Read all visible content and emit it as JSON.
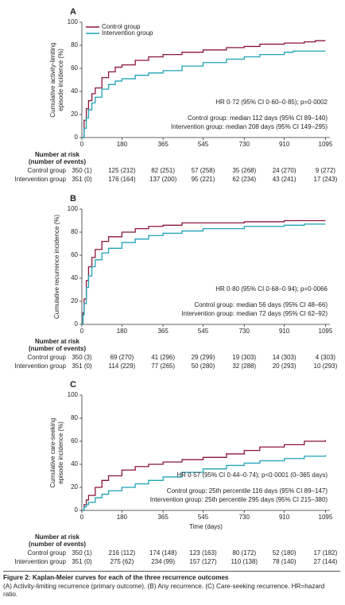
{
  "chart_data": [
    {
      "type": "step",
      "panel": "A",
      "ylabel": [
        "Cumulative activity-limiting",
        "episode incidence (%)"
      ],
      "xlim": [
        0,
        1115
      ],
      "ylim": [
        0,
        100
      ],
      "xticks": [
        0,
        180,
        365,
        545,
        730,
        910,
        1095
      ],
      "yticks": [
        0,
        20,
        40,
        60,
        80,
        100
      ],
      "legend": "upper left",
      "series": [
        {
          "name": "Control group",
          "color": "#8b1538",
          "x": [
            0,
            10,
            20,
            30,
            45,
            60,
            90,
            120,
            150,
            180,
            240,
            300,
            365,
            450,
            545,
            650,
            730,
            800,
            910,
            1000,
            1050,
            1095
          ],
          "values": [
            0,
            15,
            25,
            32,
            38,
            43,
            52,
            57,
            61,
            63,
            67,
            70,
            72,
            74,
            76,
            78,
            79,
            81,
            82,
            83,
            84,
            84
          ]
        },
        {
          "name": "Intervention group",
          "color": "#1fa3b8",
          "x": [
            0,
            10,
            20,
            30,
            45,
            60,
            90,
            120,
            150,
            180,
            240,
            300,
            365,
            450,
            545,
            650,
            730,
            800,
            910,
            950,
            1095
          ],
          "values": [
            0,
            8,
            17,
            24,
            30,
            35,
            42,
            46,
            49,
            51,
            54,
            56,
            58,
            62,
            65,
            68,
            70,
            72,
            74,
            75,
            75
          ]
        }
      ],
      "annotations": [
        "HR 0·72 (95% CI 0·60–0·85); p=0·0002",
        "Control group: median 112 days (95% CI 89–140)",
        "Intervention group: median 208 days (95% CI 149–295)"
      ],
      "risk_table": {
        "title": [
          "Number at risk",
          "(number of events)"
        ],
        "rows": [
          {
            "label": "Control group",
            "cells": [
              "350 (1)",
              "125 (212)",
              "82 (251)",
              "57 (258)",
              "35 (268)",
              "24 (270)",
              "9 (272)"
            ]
          },
          {
            "label": "Intervention group",
            "cells": [
              "351 (0)",
              "176 (164)",
              "137 (200)",
              "95 (221)",
              "62 (234)",
              "43 (241)",
              "17 (243)"
            ]
          }
        ]
      }
    },
    {
      "type": "step",
      "panel": "B",
      "ylabel": [
        "Cumulative recurrence incidence (%)"
      ],
      "xlim": [
        0,
        1115
      ],
      "ylim": [
        0,
        100
      ],
      "xticks": [
        0,
        180,
        365,
        545,
        730,
        910,
        1095
      ],
      "yticks": [
        0,
        20,
        40,
        60,
        80,
        100
      ],
      "series": [
        {
          "color": "#8b1538",
          "x": [
            0,
            5,
            10,
            20,
            30,
            45,
            60,
            90,
            120,
            180,
            240,
            300,
            365,
            450,
            545,
            730,
            910,
            1095
          ],
          "values": [
            0,
            10,
            22,
            38,
            50,
            58,
            65,
            72,
            76,
            80,
            83,
            85,
            86,
            88,
            88,
            89,
            90,
            90
          ]
        },
        {
          "color": "#1fa3b8",
          "x": [
            0,
            5,
            10,
            20,
            30,
            45,
            60,
            90,
            120,
            180,
            240,
            300,
            365,
            450,
            545,
            730,
            910,
            1000,
            1095
          ],
          "values": [
            0,
            8,
            18,
            32,
            42,
            50,
            56,
            62,
            66,
            71,
            74,
            77,
            79,
            81,
            83,
            85,
            86,
            87,
            87
          ]
        }
      ],
      "annotations": [
        "HR 0·80 (95% CI 0·68–0·94); p=0·0066",
        "Control group: median 56 days (95% CI 48–66)",
        "Intervention group: median 72 days (95% CI 62–92)"
      ],
      "risk_table": {
        "title": [
          "Number at risk",
          "(number of events)"
        ],
        "rows": [
          {
            "label": "Control group",
            "cells": [
              "350 (3)",
              "69 (270)",
              "41 (296)",
              "29 (299)",
              "19 (303)",
              "14 (303)",
              "4 (303)"
            ]
          },
          {
            "label": "Intervention group",
            "cells": [
              "351 (0)",
              "114 (229)",
              "77 (265)",
              "50 (280)",
              "32 (288)",
              "20 (293)",
              "10 (293)"
            ]
          }
        ]
      }
    },
    {
      "type": "step",
      "panel": "C",
      "ylabel": [
        "Cumulative care-seeking",
        "episode incidence (%)"
      ],
      "xlabel": "Time (days)",
      "xlim": [
        0,
        1115
      ],
      "ylim": [
        0,
        100
      ],
      "xticks": [
        0,
        180,
        365,
        545,
        730,
        910,
        1095
      ],
      "yticks": [
        0,
        20,
        40,
        60,
        80,
        100
      ],
      "series": [
        {
          "color": "#8b1538",
          "x": [
            0,
            10,
            20,
            30,
            60,
            90,
            120,
            180,
            240,
            300,
            365,
            450,
            545,
            650,
            730,
            800,
            910,
            1000,
            1095
          ],
          "values": [
            0,
            5,
            9,
            13,
            20,
            26,
            30,
            35,
            38,
            40,
            42,
            44,
            46,
            49,
            52,
            55,
            57,
            60,
            61
          ]
        },
        {
          "color": "#1fa3b8",
          "x": [
            0,
            10,
            20,
            30,
            60,
            90,
            120,
            180,
            240,
            300,
            365,
            450,
            545,
            650,
            730,
            800,
            910,
            1000,
            1095
          ],
          "values": [
            0,
            3,
            5,
            7,
            11,
            14,
            17,
            20,
            23,
            26,
            29,
            33,
            36,
            39,
            41,
            43,
            45,
            47,
            48
          ]
        }
      ],
      "annotations": [
        "HR 0·57 (95% CI 0·44–0·74); p<0·0001 (0–365 days)",
        "Control group: 25th percentile 116 days (95% CI 89–147)",
        "Intervention group: 25th percentile 295 days (95% CI 215–380)"
      ],
      "risk_table": {
        "title": [
          "Number at risk",
          "(number of events)"
        ],
        "rows": [
          {
            "label": "Control group",
            "cells": [
              "350 (1)",
              "216 (112)",
              "174 (148)",
              "123 (163)",
              "80 (172)",
              "52 (180)",
              "17 (182)"
            ]
          },
          {
            "label": "Intervention group",
            "cells": [
              "351 (0)",
              "275 (62)",
              "234 (99)",
              "157 (127)",
              "110 (138)",
              "78 (140)",
              "27 (144)"
            ]
          }
        ]
      }
    }
  ],
  "caption": {
    "title": "Figure 2: Kaplan-Meier curves for each of the three recurrence outcomes",
    "text": "(A) Activity-limiting recurrence (primary outcome). (B) Any recurrence. (C) Care-seeking recurrence. HR=hazard ratio."
  }
}
